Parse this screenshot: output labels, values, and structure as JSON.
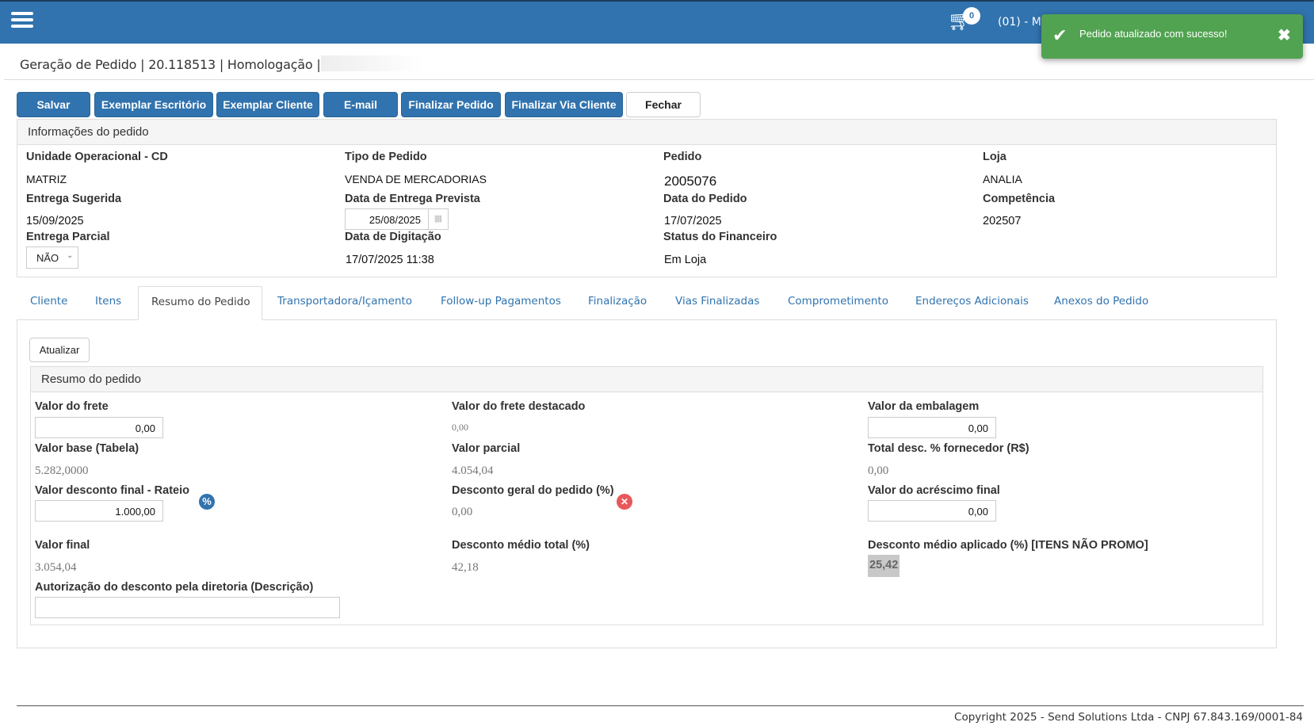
{
  "header": {
    "cart_count": "0",
    "user_label": "(01) - M"
  },
  "toast": {
    "message": "Pedido atualizado com sucesso!"
  },
  "page_title": "Geração de Pedido | 20.118513 | Homologação |",
  "toolbar": {
    "buttons": [
      "Salvar",
      "Exemplar Escritório",
      "Exemplar Cliente",
      "E-mail",
      "Finalizar Pedido",
      "Finalizar Via Cliente",
      "Fechar"
    ]
  },
  "info": {
    "title": "Informações do pedido",
    "fields": {
      "unidade": {
        "label": "Unidade Operacional - CD",
        "value": "MATRIZ"
      },
      "tipo": {
        "label": "Tipo de Pedido",
        "value": "VENDA DE MERCADORIAS"
      },
      "pedido": {
        "label": "Pedido",
        "value": "2005076"
      },
      "loja": {
        "label": "Loja",
        "value": "ANALIA"
      },
      "entrega_sugerida": {
        "label": "Entrega Sugerida",
        "value": "15/09/2025"
      },
      "entrega_prevista": {
        "label": "Data de Entrega Prevista",
        "value": "25/08/2025"
      },
      "data_pedido": {
        "label": "Data do Pedido",
        "value": "17/07/2025"
      },
      "competencia": {
        "label": "Competência",
        "value": "202507"
      },
      "entrega_parcial": {
        "label": "Entrega Parcial",
        "value": "NÃO"
      },
      "digitacao": {
        "label": "Data de Digitação",
        "value": "17/07/2025 11:38"
      },
      "status_fin": {
        "label": "Status do Financeiro",
        "value": "Em Loja"
      }
    }
  },
  "tabs": [
    "Cliente",
    "Itens",
    "Resumo do Pedido",
    "Transportadora/Içamento",
    "Follow-up Pagamentos",
    "Finalização",
    "Vias Finalizadas",
    "Comprometimento",
    "Endereços Adicionais",
    "Anexos do Pedido"
  ],
  "active_tab": "Resumo do Pedido",
  "resumo": {
    "refresh_label": "Atualizar",
    "title": "Resumo do pedido",
    "fields": {
      "frete": {
        "label": "Valor do frete",
        "value": "0,00"
      },
      "frete_destacado": {
        "label": "Valor do frete destacado",
        "value": "0,00"
      },
      "embalagem": {
        "label": "Valor da embalagem",
        "value": "0,00"
      },
      "base": {
        "label": "Valor base (Tabela)",
        "value": "5.282,0000"
      },
      "parcial": {
        "label": "Valor parcial",
        "value": "4.054,04"
      },
      "desc_fornecedor": {
        "label": "Total desc. % fornecedor (R$)",
        "value": "0,00"
      },
      "desconto_rateio": {
        "label": "Valor desconto final - Rateio",
        "value": "1.000,00"
      },
      "desconto_geral": {
        "label": "Desconto geral do pedido (%)",
        "value": "0,00"
      },
      "acrescimo": {
        "label": "Valor do acréscimo final",
        "value": "0,00"
      },
      "final": {
        "label": "Valor final",
        "value": "3.054,04"
      },
      "desc_medio_total": {
        "label": "Desconto médio total (%)",
        "value": "42,18"
      },
      "desc_medio_aplicado": {
        "label": "Desconto médio aplicado (%) [ITENS NÃO PROMO]",
        "value": "25,42"
      },
      "autorizacao": {
        "label": "Autorização do desconto pela diretoria (Descrição)",
        "value": ""
      }
    }
  },
  "footer": "Copyright 2025 - Send Solutions Ltda - CNPJ 67.843.169/0001-84",
  "colors": {
    "primary": "#3173ae",
    "success": "#51a351",
    "danger": "#e8585a"
  }
}
